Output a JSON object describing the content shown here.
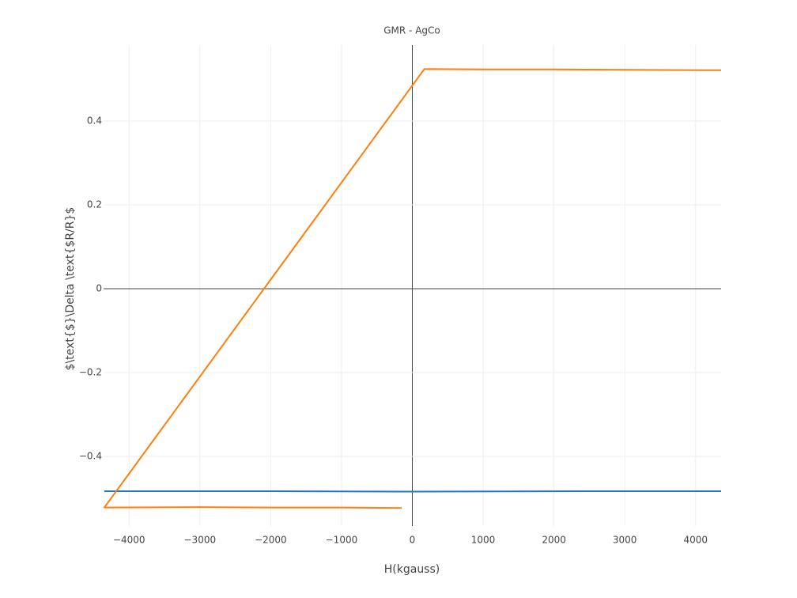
{
  "chart_data": {
    "type": "line",
    "title": "GMR - AgCo",
    "x_label": "H(kgauss)",
    "y_label": "$\\text{$}\\Delta \\text{$R/R}$",
    "xlim": [
      -4360,
      4360
    ],
    "ylim": [
      -0.566,
      0.581
    ],
    "xticks": [
      {
        "value": -4000,
        "label": "−4000"
      },
      {
        "value": -3000,
        "label": "−3000"
      },
      {
        "value": -2000,
        "label": "−2000"
      },
      {
        "value": -1000,
        "label": "−1000"
      },
      0,
      1000,
      2000,
      3000,
      4000
    ],
    "yticks": [
      {
        "value": -0.4,
        "label": "−0.4"
      },
      {
        "value": -0.2,
        "label": "−0.2"
      },
      0,
      0.2,
      0.4
    ],
    "grid": true,
    "zeroline": true,
    "series": [
      {
        "color": "#1f77b4",
        "x": [
          -4350,
          -2000,
          0,
          2400,
          4360
        ],
        "values": [
          -0.483,
          -0.483,
          -0.484,
          -0.483,
          -0.483
        ]
      },
      {
        "color": "#ff7f0e",
        "x": [
          -150,
          -1000,
          -2000,
          -3000,
          -4350,
          170,
          1000,
          2000,
          3000,
          4360
        ],
        "values": [
          -0.523,
          -0.522,
          -0.522,
          -0.521,
          -0.522,
          0.524,
          0.523,
          0.523,
          0.522,
          0.521
        ]
      }
    ]
  }
}
